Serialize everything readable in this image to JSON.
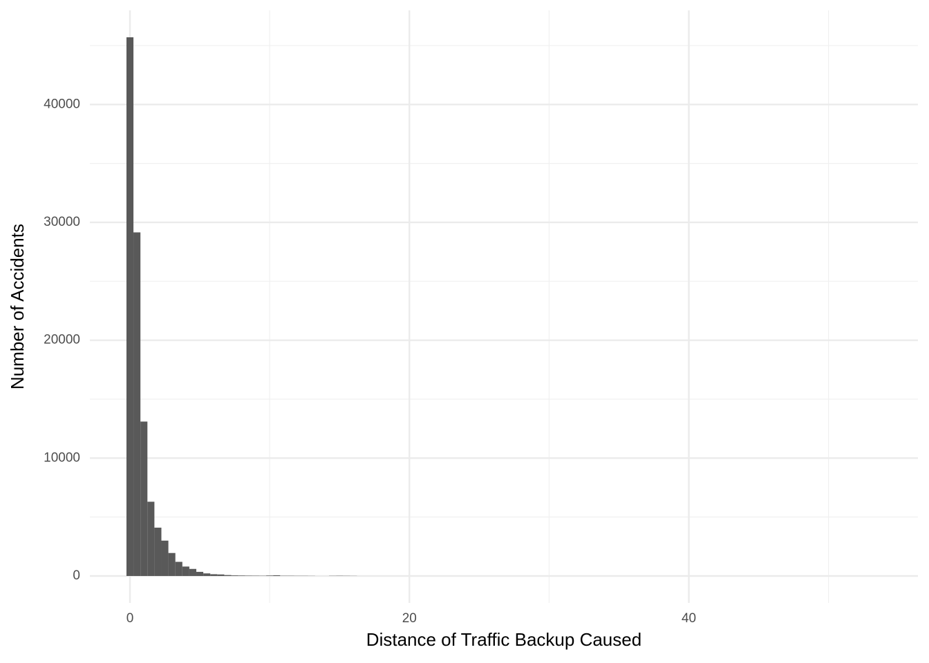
{
  "chart_data": {
    "type": "histogram",
    "xlabel": "Distance of Traffic Backup Caused",
    "ylabel": "Number of Accidents",
    "bins": [
      -0.25,
      0.25,
      0.75,
      1.25,
      1.75,
      2.25,
      2.75,
      3.25,
      3.75,
      4.25,
      4.75,
      5.25,
      5.75,
      6.25,
      6.75,
      7.25,
      7.75,
      8.25,
      8.75,
      9.25,
      9.75,
      10.25,
      10.75,
      11.25,
      11.75,
      12.25,
      12.75,
      13.25,
      13.75,
      14.25,
      14.75,
      15.25,
      15.75,
      16.25
    ],
    "counts": [
      45700,
      29150,
      13100,
      6300,
      4100,
      3000,
      1950,
      1200,
      800,
      600,
      350,
      220,
      150,
      130,
      80,
      50,
      40,
      30,
      25,
      20,
      40,
      60,
      20,
      20,
      15,
      15,
      10,
      0,
      0,
      15,
      20,
      15,
      10
    ],
    "color": "#595959",
    "xlim": [
      -2.87,
      56.4
    ],
    "xticks": [
      0,
      20,
      40
    ],
    "ylim": [
      -2285,
      47985
    ],
    "yticks": [
      0,
      10000,
      20000,
      30000,
      40000
    ],
    "grid": true
  }
}
